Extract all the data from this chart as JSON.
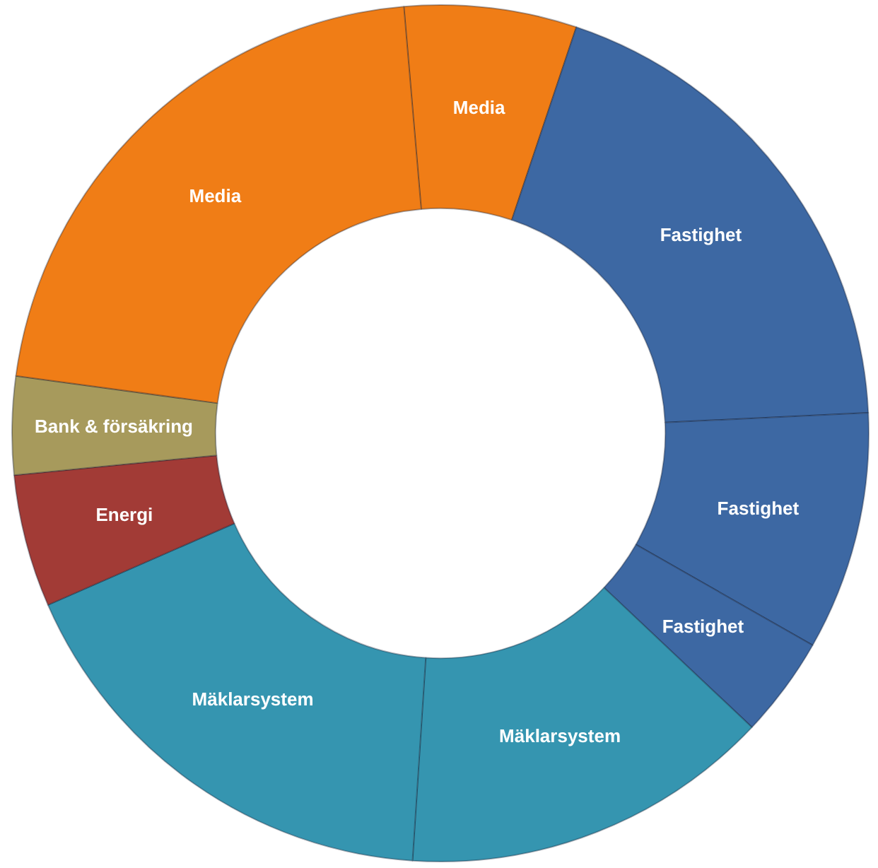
{
  "chart_data": {
    "type": "donut",
    "categories": [
      "Media",
      "Fastighet",
      "Fastighet",
      "Fastighet",
      "Mäklarsystem",
      "Mäklarsystem",
      "Energi",
      "Bank & försäkring",
      "Media"
    ],
    "values": [
      6.5,
      19.1,
      9.0,
      3.8,
      14.0,
      17.4,
      5.0,
      3.7,
      21.5
    ],
    "colors": [
      "#f07d16",
      "#3d68a3",
      "#3d68a3",
      "#3d68a3",
      "#3595b0",
      "#3595b0",
      "#a23b36",
      "#a79a5c",
      "#f07d16"
    ]
  }
}
